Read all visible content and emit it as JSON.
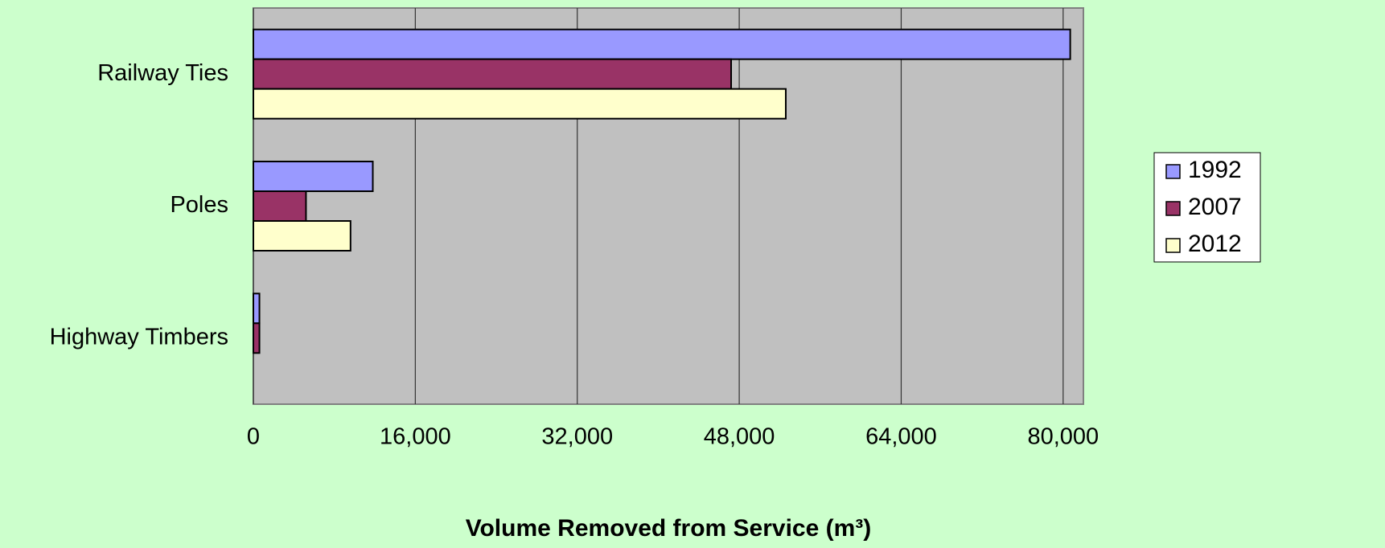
{
  "chart_data": {
    "type": "hbar",
    "xlabel": "Volume Removed from Service (m³)",
    "categories": [
      "Railway Ties",
      "Poles",
      "Highway Timbers"
    ],
    "series": [
      {
        "name": "1992",
        "color": "#9999ff",
        "values": [
          80700,
          11800,
          600
        ]
      },
      {
        "name": "2007",
        "color": "#993366",
        "values": [
          47200,
          5200,
          600
        ]
      },
      {
        "name": "2012",
        "color": "#ffffcc",
        "values": [
          52600,
          9600,
          0
        ]
      }
    ],
    "xlim": [
      0,
      82000
    ],
    "xticks": [
      0,
      {
        "value": 16000,
        "label": "16,000"
      },
      {
        "value": 32000,
        "label": "32,000"
      },
      {
        "value": 48000,
        "label": "48,000"
      },
      {
        "value": 64000,
        "label": "64,000"
      },
      {
        "value": 80000,
        "label": "80,000"
      }
    ],
    "grid": true,
    "legend": "right"
  }
}
